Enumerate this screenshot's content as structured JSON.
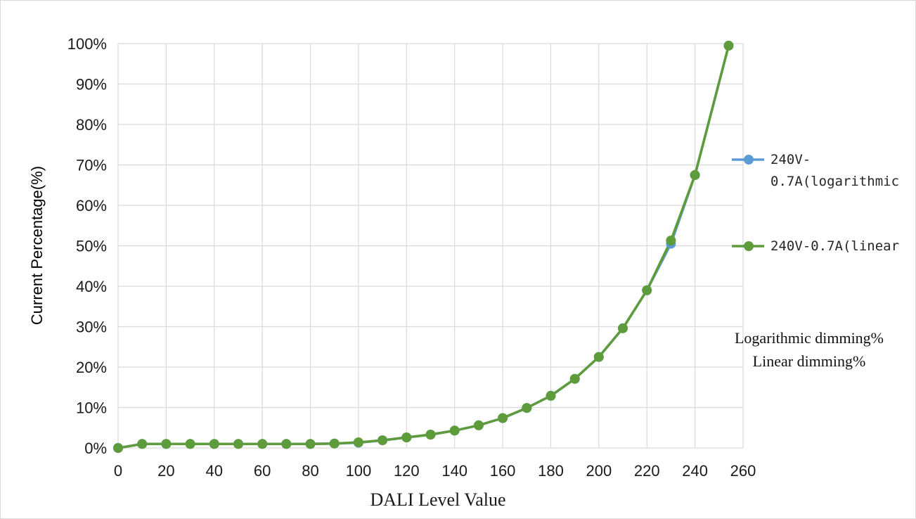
{
  "chart_data": {
    "type": "line",
    "title": "",
    "xlabel": "DALI Level Value",
    "ylabel": "Current Percentage(%)",
    "xlim": [
      0,
      260
    ],
    "ylim": [
      0,
      100
    ],
    "x_ticks": [
      0,
      20,
      40,
      60,
      80,
      100,
      120,
      140,
      160,
      180,
      200,
      220,
      240,
      260
    ],
    "y_ticks": [
      0,
      10,
      20,
      30,
      40,
      50,
      60,
      70,
      80,
      90,
      100
    ],
    "y_tick_labels": [
      "0%",
      "10%",
      "20%",
      "30%",
      "40%",
      "50%",
      "60%",
      "70%",
      "80%",
      "90%",
      "100%"
    ],
    "grid": true,
    "legend_position": "right",
    "x": [
      0,
      10,
      20,
      30,
      40,
      50,
      60,
      70,
      80,
      90,
      100,
      110,
      120,
      130,
      140,
      150,
      160,
      170,
      180,
      190,
      200,
      210,
      220,
      230,
      240,
      254
    ],
    "series": [
      {
        "name": "240V-0.7A(logarithmic",
        "legend_lines": [
          "240V-",
          "0.7A(logarithmic"
        ],
        "color": "#5b9bd5",
        "values": [
          0,
          1,
          1,
          1,
          1,
          1,
          1,
          1,
          1,
          1.1,
          1.3,
          1.9,
          2.6,
          3.3,
          4.3,
          5.6,
          7.4,
          9.9,
          12.9,
          17.1,
          22.5,
          29.6,
          39,
          50.5,
          67.5,
          99.5
        ]
      },
      {
        "name": "240V-0.7A(linear",
        "legend_lines": [
          "240V-0.7A(linear"
        ],
        "color": "#5e9b3a",
        "values": [
          0,
          1,
          1,
          1,
          1,
          1,
          1,
          1,
          1,
          1.1,
          1.4,
          1.9,
          2.6,
          3.3,
          4.3,
          5.6,
          7.4,
          9.9,
          12.9,
          17.1,
          22.5,
          29.6,
          39,
          51.3,
          67.5,
          99.5
        ]
      }
    ],
    "annotations": [
      "Logarithmic dimming%",
      "Linear dimming%"
    ]
  }
}
